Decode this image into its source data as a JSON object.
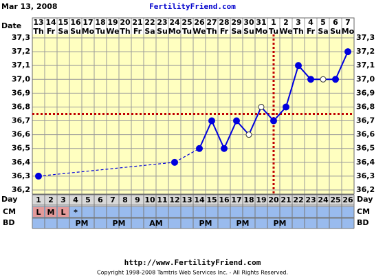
{
  "chart_data": {
    "type": "line",
    "date_text": "Mar 13, 2008",
    "site_title": "FertilityFriend.com",
    "date_label": "Date",
    "day_label": "Day",
    "cm_label": "CM",
    "bd_label": "BD",
    "categories": [
      1,
      2,
      3,
      4,
      5,
      6,
      7,
      8,
      9,
      10,
      11,
      12,
      13,
      14,
      15,
      16,
      17,
      18,
      19,
      20,
      21,
      22,
      23,
      24,
      25,
      26
    ],
    "dates": [
      13,
      14,
      15,
      16,
      17,
      18,
      19,
      20,
      21,
      22,
      23,
      24,
      25,
      26,
      27,
      28,
      29,
      30,
      31,
      1,
      2,
      3,
      4,
      5,
      6,
      7
    ],
    "weekdays": [
      "Th",
      "Fr",
      "Sa",
      "Su",
      "Mo",
      "Tu",
      "We",
      "Th",
      "Fr",
      "Sa",
      "Su",
      "Mo",
      "Tu",
      "We",
      "Th",
      "Fr",
      "Sa",
      "Su",
      "Mo",
      "Tu",
      "We",
      "Th",
      "Fr",
      "Sa",
      "Su",
      "Mo"
    ],
    "values": [
      36.3,
      null,
      null,
      null,
      null,
      null,
      null,
      null,
      null,
      null,
      null,
      36.4,
      null,
      36.5,
      36.7,
      36.5,
      36.7,
      36.6,
      36.8,
      36.7,
      36.8,
      37.1,
      37.0,
      37.0,
      37.0,
      37.2
    ],
    "marker_styles": [
      "filled",
      null,
      null,
      null,
      null,
      null,
      null,
      null,
      null,
      null,
      null,
      "filled",
      null,
      "filled",
      "filled",
      "filled",
      "filled",
      "open",
      "open",
      "filled",
      "filled",
      "filled",
      "filled",
      "open",
      "filled",
      "filled"
    ],
    "color": "#0000dd",
    "ylim": [
      36.2,
      37.3
    ],
    "yticks": [
      {
        "value": 36.2,
        "label": "36,2"
      },
      {
        "value": 36.3,
        "label": "36,3"
      },
      {
        "value": 36.4,
        "label": "36,4"
      },
      {
        "value": 36.5,
        "label": "36,5"
      },
      {
        "value": 36.6,
        "label": "36,6"
      },
      {
        "value": 36.7,
        "label": "36,7"
      },
      {
        "value": 36.8,
        "label": "36,8"
      },
      {
        "value": 36.9,
        "label": "36,9"
      },
      {
        "value": 37.0,
        "label": "37,0"
      },
      {
        "value": 37.1,
        "label": "37,1"
      },
      {
        "value": 37.2,
        "label": "37,2"
      },
      {
        "value": 37.3,
        "label": "37,3"
      }
    ],
    "grid": true,
    "coverline": 36.75,
    "ovulation_day": 20,
    "cm": [
      "L",
      "M",
      "L",
      "*",
      null,
      null,
      null,
      null,
      null,
      null,
      null,
      null,
      null,
      null,
      null,
      null,
      null,
      null,
      null,
      null,
      null,
      null,
      null,
      null,
      null,
      null
    ],
    "bd": [
      null,
      null,
      null,
      "PM",
      null,
      null,
      "PM",
      null,
      null,
      "AM",
      null,
      null,
      null,
      "PM",
      null,
      null,
      "PM",
      null,
      null,
      "PM",
      null,
      null,
      null,
      null,
      null,
      null
    ],
    "footer_url": "http://www.FertilityFriend.com",
    "copyright": "Copyright 1998-2008 Tamtris Web Services Inc. - All Rights Reserved."
  }
}
